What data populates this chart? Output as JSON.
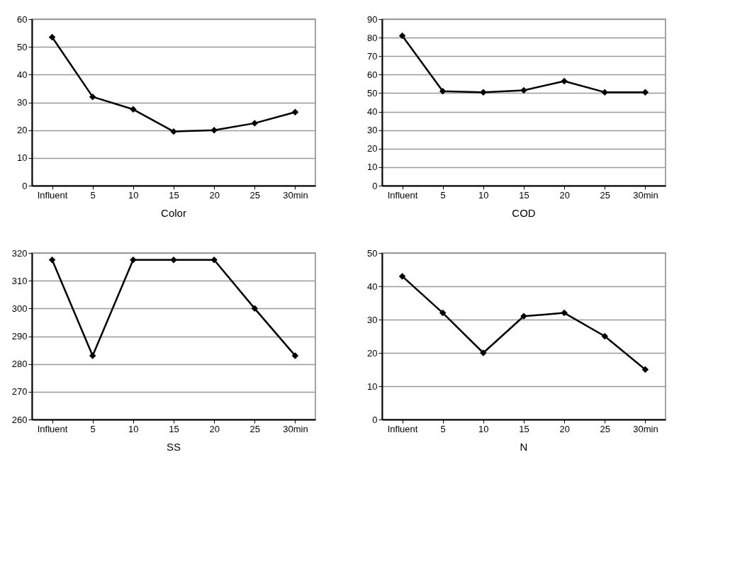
{
  "chart_data": [
    {
      "type": "line",
      "title": "Color",
      "categories": [
        "Influent",
        "5",
        "10",
        "15",
        "20",
        "25",
        "30min"
      ],
      "series": [
        {
          "color": "#000000",
          "values": [
            53.5,
            32,
            27.5,
            19.5,
            20,
            22.5,
            26.5
          ]
        }
      ],
      "ylim": [
        0,
        60
      ],
      "yticks": [
        0,
        10,
        20,
        30,
        40,
        50,
        60
      ],
      "grid": "y",
      "marker": "diamond",
      "line_style": "solid"
    },
    {
      "type": "line",
      "title": "COD",
      "categories": [
        "Influent",
        "5",
        "10",
        "15",
        "20",
        "25",
        "30min"
      ],
      "series": [
        {
          "color": "#000000",
          "values": [
            81,
            51,
            50.5,
            51.5,
            56.5,
            50.5,
            50.5
          ]
        }
      ],
      "ylim": [
        0,
        90
      ],
      "yticks": [
        0,
        10,
        20,
        30,
        40,
        50,
        60,
        70,
        80,
        90
      ],
      "grid": "y",
      "marker": "diamond",
      "line_style": "solid"
    },
    {
      "type": "line",
      "title": "SS",
      "categories": [
        "Influent",
        "5",
        "10",
        "15",
        "20",
        "25",
        "30min"
      ],
      "series": [
        {
          "color": "#000000",
          "values": [
            317.5,
            283,
            317.5,
            317.5,
            317.5,
            300,
            283
          ]
        }
      ],
      "ylim": [
        260,
        320
      ],
      "yticks": [
        260,
        270,
        280,
        290,
        300,
        310,
        320
      ],
      "grid": "y",
      "marker": "diamond",
      "line_style": "solid"
    },
    {
      "type": "line",
      "title": "N",
      "categories": [
        "Influent",
        "5",
        "10",
        "15",
        "20",
        "25",
        "30min"
      ],
      "series": [
        {
          "color": "#000000",
          "values": [
            43,
            32,
            20,
            31,
            32,
            25,
            15
          ]
        }
      ],
      "ylim": [
        0,
        50
      ],
      "yticks": [
        0,
        10,
        20,
        30,
        40,
        50
      ],
      "grid": "y",
      "marker": "diamond",
      "line_style": "solid"
    }
  ]
}
